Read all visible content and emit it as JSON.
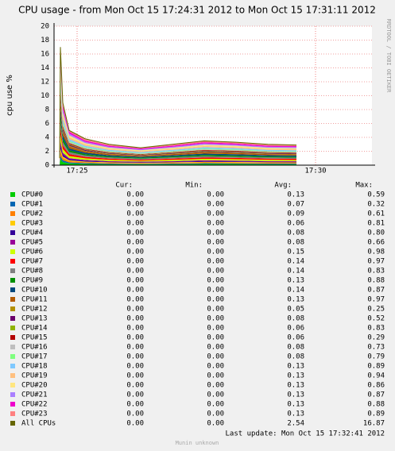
{
  "chart_data": {
    "type": "stacked-area",
    "title": "CPU usage - from Mon Oct 15 17:24:31 2012 to Mon Oct 15 17:31:11 2012",
    "ylabel": "cpu use %",
    "side_text": "RRDTOOL / TOBI OETIKER",
    "x": [
      1478,
      1479,
      1482,
      1490,
      1510,
      1540,
      1580,
      1620,
      1660,
      1700,
      1740,
      1776
    ],
    "xlim": [
      1471,
      1871
    ],
    "xticks": [
      {
        "value": 1500,
        "label": "17:25"
      },
      {
        "value": 1800,
        "label": "17:30"
      }
    ],
    "ylim": [
      0,
      20
    ],
    "yticks": [
      0,
      2,
      4,
      6,
      8,
      10,
      12,
      14,
      16,
      18,
      20
    ],
    "grid": true,
    "series": [
      {
        "name": "CPU#0",
        "color": "#00cc00",
        "values": [
          0.05,
          0.87,
          0.46,
          0.26,
          0.19,
          0.15,
          0.13,
          0.15,
          0.18,
          0.17,
          0.15,
          0.15
        ]
      },
      {
        "name": "CPU#1",
        "color": "#0066b3",
        "values": [
          0.03,
          0.47,
          0.25,
          0.14,
          0.11,
          0.08,
          0.07,
          0.08,
          0.1,
          0.09,
          0.08,
          0.08
        ]
      },
      {
        "name": "CPU#2",
        "color": "#ff8000",
        "values": [
          0.04,
          0.6,
          0.32,
          0.18,
          0.13,
          0.11,
          0.09,
          0.11,
          0.12,
          0.12,
          0.11,
          0.1
        ]
      },
      {
        "name": "CPU#3",
        "color": "#ffcc00",
        "values": [
          0.02,
          0.4,
          0.21,
          0.12,
          0.09,
          0.07,
          0.06,
          0.07,
          0.08,
          0.08,
          0.07,
          0.07
        ]
      },
      {
        "name": "CPU#4",
        "color": "#330099",
        "values": [
          0.03,
          0.54,
          0.28,
          0.16,
          0.12,
          0.09,
          0.08,
          0.09,
          0.11,
          0.1,
          0.09,
          0.09
        ]
      },
      {
        "name": "CPU#5",
        "color": "#990099",
        "values": [
          0.03,
          0.54,
          0.28,
          0.16,
          0.12,
          0.09,
          0.08,
          0.09,
          0.11,
          0.1,
          0.09,
          0.09
        ]
      },
      {
        "name": "CPU#6",
        "color": "#ccff00",
        "values": [
          0.06,
          1.0,
          0.53,
          0.3,
          0.22,
          0.18,
          0.15,
          0.18,
          0.21,
          0.2,
          0.18,
          0.17
        ]
      },
      {
        "name": "CPU#7",
        "color": "#ff0000",
        "values": [
          0.06,
          0.94,
          0.5,
          0.28,
          0.21,
          0.17,
          0.14,
          0.17,
          0.19,
          0.18,
          0.17,
          0.16
        ]
      },
      {
        "name": "CPU#8",
        "color": "#808080",
        "values": [
          0.06,
          0.94,
          0.5,
          0.28,
          0.21,
          0.17,
          0.14,
          0.17,
          0.19,
          0.18,
          0.17,
          0.16
        ]
      },
      {
        "name": "CPU#9",
        "color": "#008f00",
        "values": [
          0.05,
          0.87,
          0.46,
          0.26,
          0.19,
          0.15,
          0.13,
          0.15,
          0.18,
          0.17,
          0.15,
          0.15
        ]
      },
      {
        "name": "CPU#10",
        "color": "#00487d",
        "values": [
          0.06,
          0.94,
          0.5,
          0.28,
          0.21,
          0.17,
          0.14,
          0.17,
          0.19,
          0.18,
          0.17,
          0.16
        ]
      },
      {
        "name": "CPU#11",
        "color": "#b35a00",
        "values": [
          0.05,
          0.87,
          0.46,
          0.26,
          0.19,
          0.15,
          0.13,
          0.15,
          0.18,
          0.17,
          0.15,
          0.15
        ]
      },
      {
        "name": "CPU#12",
        "color": "#b38f00",
        "values": [
          0.02,
          0.33,
          0.18,
          0.1,
          0.07,
          0.06,
          0.05,
          0.06,
          0.07,
          0.07,
          0.06,
          0.06
        ]
      },
      {
        "name": "CPU#13",
        "color": "#6b006b",
        "values": [
          0.03,
          0.54,
          0.28,
          0.16,
          0.12,
          0.09,
          0.08,
          0.09,
          0.11,
          0.1,
          0.09,
          0.09
        ]
      },
      {
        "name": "CPU#14",
        "color": "#8fb300",
        "values": [
          0.02,
          0.4,
          0.21,
          0.12,
          0.09,
          0.07,
          0.06,
          0.07,
          0.08,
          0.08,
          0.07,
          0.07
        ]
      },
      {
        "name": "CPU#15",
        "color": "#b30000",
        "values": [
          0.02,
          0.4,
          0.21,
          0.12,
          0.09,
          0.07,
          0.06,
          0.07,
          0.08,
          0.08,
          0.07,
          0.07
        ]
      },
      {
        "name": "CPU#16",
        "color": "#bebebe",
        "values": [
          0.03,
          0.54,
          0.28,
          0.16,
          0.12,
          0.09,
          0.08,
          0.09,
          0.11,
          0.1,
          0.09,
          0.09
        ]
      },
      {
        "name": "CPU#17",
        "color": "#80ff80",
        "values": [
          0.03,
          0.54,
          0.28,
          0.16,
          0.12,
          0.09,
          0.08,
          0.09,
          0.11,
          0.1,
          0.09,
          0.09
        ]
      },
      {
        "name": "CPU#18",
        "color": "#80c9ff",
        "values": [
          0.05,
          0.87,
          0.46,
          0.26,
          0.19,
          0.15,
          0.13,
          0.15,
          0.18,
          0.17,
          0.15,
          0.15
        ]
      },
      {
        "name": "CPU#19",
        "color": "#ffc080",
        "values": [
          0.05,
          0.87,
          0.46,
          0.26,
          0.19,
          0.15,
          0.13,
          0.15,
          0.18,
          0.17,
          0.15,
          0.15
        ]
      },
      {
        "name": "CPU#20",
        "color": "#ffe680",
        "values": [
          0.05,
          0.87,
          0.46,
          0.26,
          0.19,
          0.15,
          0.13,
          0.15,
          0.18,
          0.17,
          0.15,
          0.15
        ]
      },
      {
        "name": "CPU#21",
        "color": "#aa80ff",
        "values": [
          0.05,
          0.87,
          0.46,
          0.26,
          0.19,
          0.15,
          0.13,
          0.15,
          0.18,
          0.17,
          0.15,
          0.15
        ]
      },
      {
        "name": "CPU#22",
        "color": "#ee00cc",
        "values": [
          0.05,
          0.87,
          0.46,
          0.26,
          0.19,
          0.15,
          0.13,
          0.15,
          0.18,
          0.17,
          0.15,
          0.15
        ]
      },
      {
        "name": "CPU#23",
        "color": "#ff8080",
        "values": [
          0.05,
          0.87,
          0.46,
          0.26,
          0.19,
          0.15,
          0.13,
          0.15,
          0.18,
          0.17,
          0.15,
          0.15
        ]
      }
    ],
    "total": {
      "name": "All CPUs",
      "color": "#666600",
      "values": [
        1,
        17,
        9,
        5,
        3.8,
        3,
        2.5,
        3,
        3.5,
        3.3,
        3,
        2.9
      ]
    },
    "table": {
      "columns": [
        "Cur:",
        "Min:",
        "Avg:",
        "Max:"
      ],
      "rows": [
        [
          "0.00",
          "0.00",
          "0.13",
          "0.59"
        ],
        [
          "0.00",
          "0.00",
          "0.07",
          "0.32"
        ],
        [
          "0.00",
          "0.00",
          "0.09",
          "0.61"
        ],
        [
          "0.00",
          "0.00",
          "0.06",
          "0.81"
        ],
        [
          "0.00",
          "0.00",
          "0.08",
          "0.80"
        ],
        [
          "0.00",
          "0.00",
          "0.08",
          "0.66"
        ],
        [
          "0.00",
          "0.00",
          "0.15",
          "0.98"
        ],
        [
          "0.00",
          "0.00",
          "0.14",
          "0.97"
        ],
        [
          "0.00",
          "0.00",
          "0.14",
          "0.83"
        ],
        [
          "0.00",
          "0.00",
          "0.13",
          "0.88"
        ],
        [
          "0.00",
          "0.00",
          "0.14",
          "0.87"
        ],
        [
          "0.00",
          "0.00",
          "0.13",
          "0.97"
        ],
        [
          "0.00",
          "0.00",
          "0.05",
          "0.25"
        ],
        [
          "0.00",
          "0.00",
          "0.08",
          "0.52"
        ],
        [
          "0.00",
          "0.00",
          "0.06",
          "0.83"
        ],
        [
          "0.00",
          "0.00",
          "0.06",
          "0.29"
        ],
        [
          "0.00",
          "0.00",
          "0.08",
          "0.73"
        ],
        [
          "0.00",
          "0.00",
          "0.08",
          "0.79"
        ],
        [
          "0.00",
          "0.00",
          "0.13",
          "0.89"
        ],
        [
          "0.00",
          "0.00",
          "0.13",
          "0.94"
        ],
        [
          "0.00",
          "0.00",
          "0.13",
          "0.86"
        ],
        [
          "0.00",
          "0.00",
          "0.13",
          "0.87"
        ],
        [
          "0.00",
          "0.00",
          "0.13",
          "0.88"
        ],
        [
          "0.00",
          "0.00",
          "0.13",
          "0.89"
        ],
        [
          "0.00",
          "0.00",
          "2.54",
          "16.87"
        ]
      ]
    },
    "last_update": "Last update: Mon Oct 15 17:32:41 2012",
    "footer": "Munin unknown"
  }
}
